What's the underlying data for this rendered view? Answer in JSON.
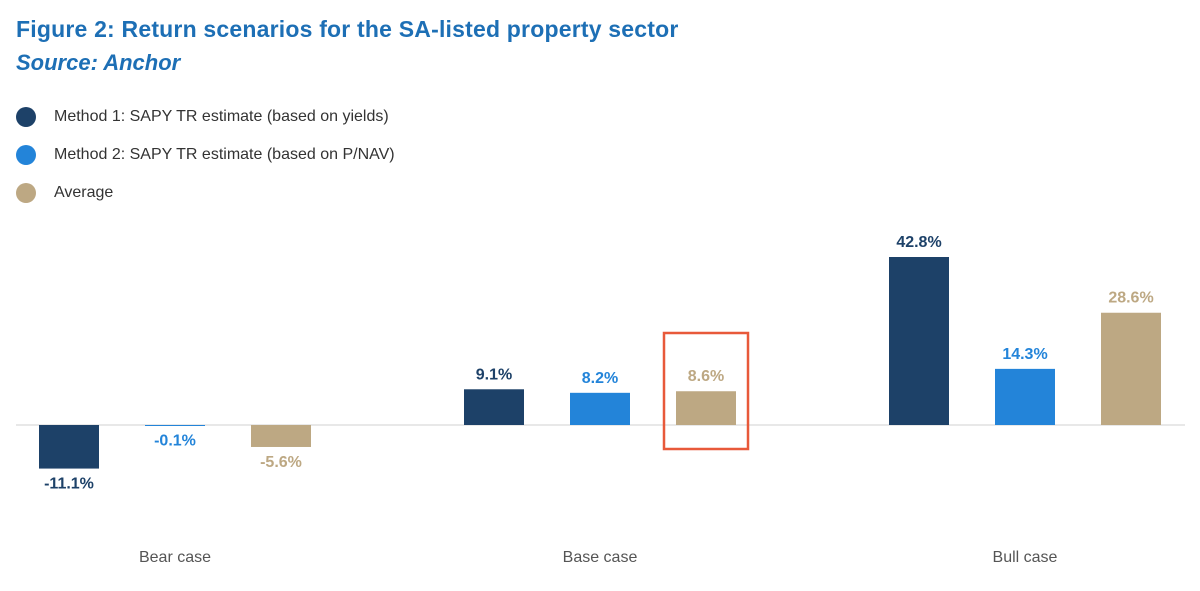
{
  "header": {
    "title": "Figure 2: Return scenarios for the SA-listed property sector",
    "subtitle": "Source: Anchor"
  },
  "legend": [
    {
      "label": "Method 1: SAPY TR estimate (based on yields)",
      "color": "#1d4168"
    },
    {
      "label": "Method 2: SAPY TR estimate (based on P/NAV)",
      "color": "#2384d9"
    },
    {
      "label": "Average",
      "color": "#bda883"
    }
  ],
  "chart_data": {
    "type": "bar",
    "title": "Figure 2: Return scenarios for the SA-listed property sector",
    "subtitle": "Source: Anchor",
    "categories": [
      "Bear case",
      "Base case",
      "Bull case"
    ],
    "series": [
      {
        "name": "Method 1: SAPY TR estimate (based on yields)",
        "color": "#1d4168",
        "values": [
          -11.1,
          9.1,
          42.8
        ],
        "labels": [
          "-11.1%",
          "9.1%",
          "42.8%"
        ]
      },
      {
        "name": "Method 2: SAPY TR estimate (based on P/NAV)",
        "color": "#2384d9",
        "values": [
          -0.1,
          8.2,
          14.3
        ],
        "labels": [
          "-0.1%",
          "8.2%",
          "14.3%"
        ]
      },
      {
        "name": "Average",
        "color": "#bda883",
        "values": [
          -5.6,
          8.6,
          28.6
        ],
        "labels": [
          "-5.6%",
          "8.6%",
          "28.6%"
        ]
      }
    ],
    "highlight": {
      "category": "Base case",
      "series": "Average",
      "color": "#e8593a"
    },
    "xlabel": "",
    "ylabel": "",
    "unit": "%",
    "grid": false,
    "legend_position": "top-left"
  }
}
